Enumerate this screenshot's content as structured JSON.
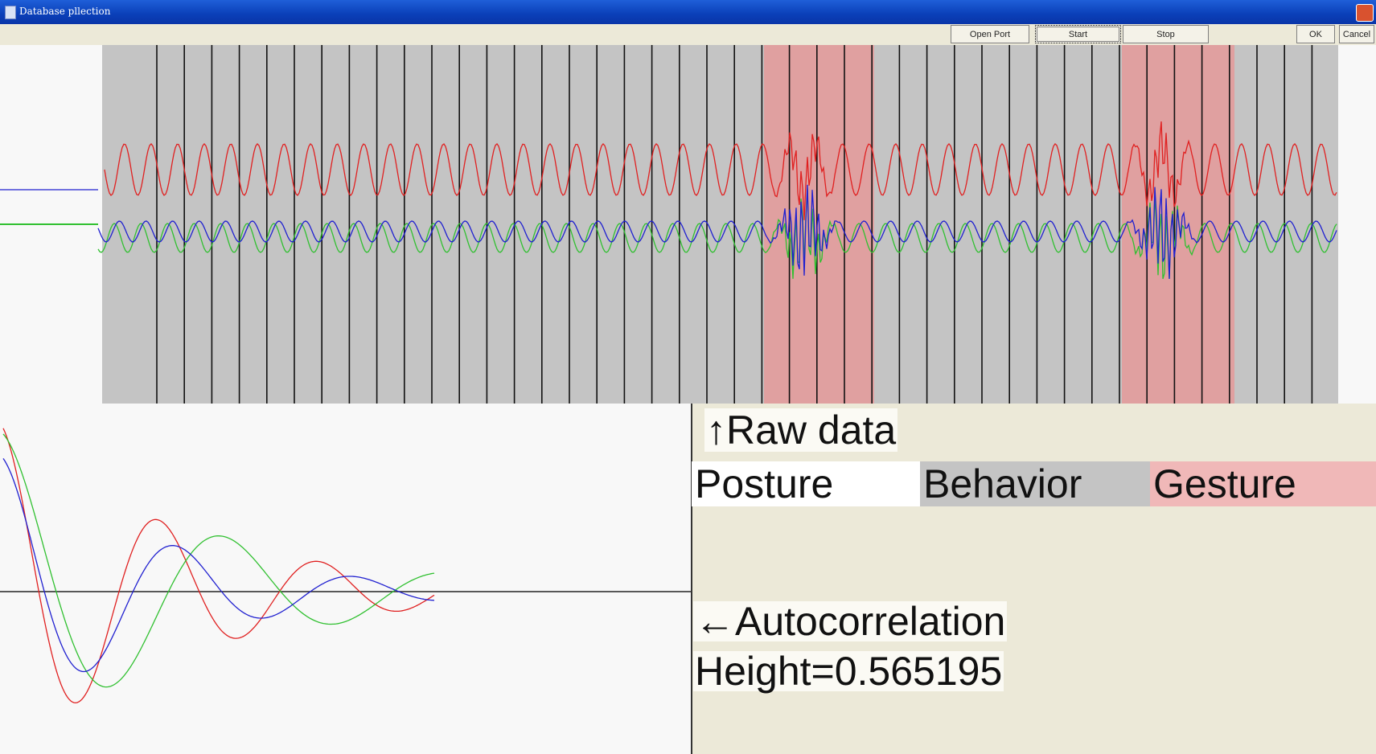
{
  "window": {
    "title": "Database pllection",
    "icon": "document-icon"
  },
  "toolbar": {
    "buttons": [
      {
        "label": "Open Port"
      },
      {
        "label": "Start"
      },
      {
        "label": "Stop"
      },
      {
        "label": "OK"
      },
      {
        "label": "Cancel"
      }
    ]
  },
  "labels": {
    "raw_data": "↑Raw data",
    "posture": "Posture",
    "behavior": "Behavior",
    "gesture": "Gesture",
    "autocorrelation": "←Autocorrelation",
    "height": "Height=0.565195"
  },
  "colors": {
    "behavior_band": "#c4c4c4",
    "gesture_band": "#e0a0a0",
    "series_red": "#e02020",
    "series_green": "#30c030",
    "series_blue": "#2020d0"
  }
}
